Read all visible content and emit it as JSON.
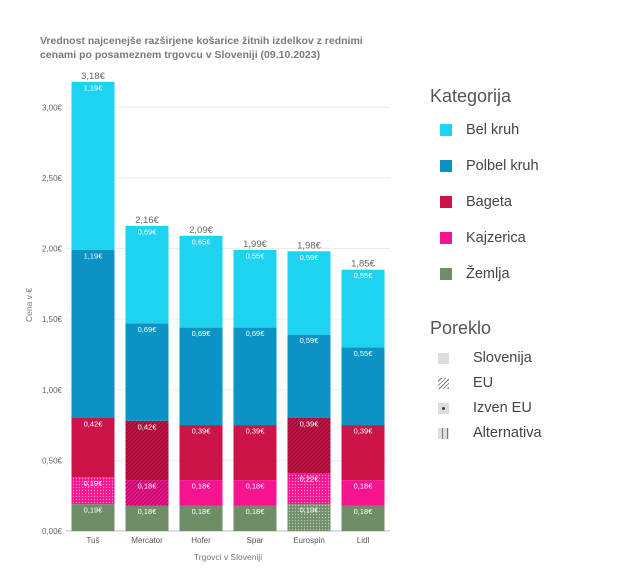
{
  "title_lines": [
    "Vrednost najcenejše razširjene košarice žitnih izdelkov z rednimi",
    " cenami po posameznem trgovcu v Sloveniji (09.10.2023)"
  ],
  "legend": {
    "category_title": "Kategorija",
    "categories": [
      {
        "label": "Bel kruh",
        "color": "#1dd3ef"
      },
      {
        "label": "Polbel kruh",
        "color": "#0a93c4"
      },
      {
        "label": "Bageta",
        "color": "#cc1448"
      },
      {
        "label": "Kajzerica",
        "color": "#f5138f"
      },
      {
        "label": "Žemlja",
        "color": "#6f8d67"
      }
    ],
    "origin_title": "Poreklo",
    "origins": [
      {
        "label": "Slovenija",
        "pattern": "solid"
      },
      {
        "label": "EU",
        "pattern": "diagonal"
      },
      {
        "label": "Izven EU",
        "pattern": "dots"
      },
      {
        "label": "Alternativa",
        "pattern": "vertical"
      }
    ]
  },
  "chart_data": {
    "type": "bar",
    "stacked": true,
    "xlabel": "Trgovci v Sloveniji",
    "ylabel": "Cena v €",
    "ylim": [
      0,
      3.2
    ],
    "yticks": [
      0,
      0.5,
      1.0,
      1.5,
      2.0,
      2.5,
      3.0
    ],
    "ytick_labels": [
      "0,00€",
      "0,50€",
      "1,00€",
      "1,50€",
      "2,00€",
      "2,50€",
      "3,00€"
    ],
    "categories": [
      "Tuš",
      "Mercator",
      "Hofer",
      "Spar",
      "Eurospin",
      "Lidl"
    ],
    "totals": [
      3.18,
      2.16,
      2.09,
      1.99,
      1.98,
      1.85
    ],
    "total_labels": [
      "3,18€",
      "2,16€",
      "2,09€",
      "1,99€",
      "1,98€",
      "1,85€"
    ],
    "series": [
      {
        "name": "Žemlja",
        "values": [
          0.19,
          0.18,
          0.18,
          0.18,
          0.19,
          0.18
        ],
        "labels": [
          "0,19€",
          "0,18€",
          "0,18€",
          "0,18€",
          "0,19€",
          "0,18€"
        ],
        "patterns": [
          "solid",
          "solid",
          "solid",
          "solid",
          "dots",
          "solid"
        ]
      },
      {
        "name": "Kajzerica",
        "values": [
          0.19,
          0.18,
          0.18,
          0.18,
          0.22,
          0.18
        ],
        "labels": [
          "0,19€",
          "0,18€",
          "0,18€",
          "0,18€",
          "0,22€",
          "0,18€"
        ],
        "patterns": [
          "dots",
          "diagonal",
          "solid",
          "solid",
          "dots",
          "solid"
        ]
      },
      {
        "name": "Bageta",
        "values": [
          0.42,
          0.42,
          0.39,
          0.39,
          0.39,
          0.39
        ],
        "labels": [
          "0,42€",
          "0,42€",
          "0,39€",
          "0,39€",
          "0,39€",
          "0,39€"
        ],
        "patterns": [
          "solid",
          "diagonal",
          "solid",
          "solid",
          "diagonal",
          "solid"
        ]
      },
      {
        "name": "Polbel kruh",
        "values": [
          1.19,
          0.69,
          0.69,
          0.69,
          0.59,
          0.55
        ],
        "labels": [
          "1,19€",
          "0,69€",
          "0,69€",
          "0,69€",
          "0,59€",
          "0,55€"
        ],
        "patterns": [
          "solid",
          "solid",
          "solid",
          "solid",
          "solid",
          "solid"
        ]
      },
      {
        "name": "Bel kruh",
        "values": [
          1.19,
          0.69,
          0.65,
          0.55,
          0.59,
          0.55
        ],
        "labels": [
          "1,19€",
          "0,69€",
          "0,65€",
          "0,55€",
          "0,59€",
          "0,55€"
        ],
        "patterns": [
          "solid",
          "solid",
          "solid",
          "solid",
          "solid",
          "solid"
        ]
      }
    ]
  }
}
